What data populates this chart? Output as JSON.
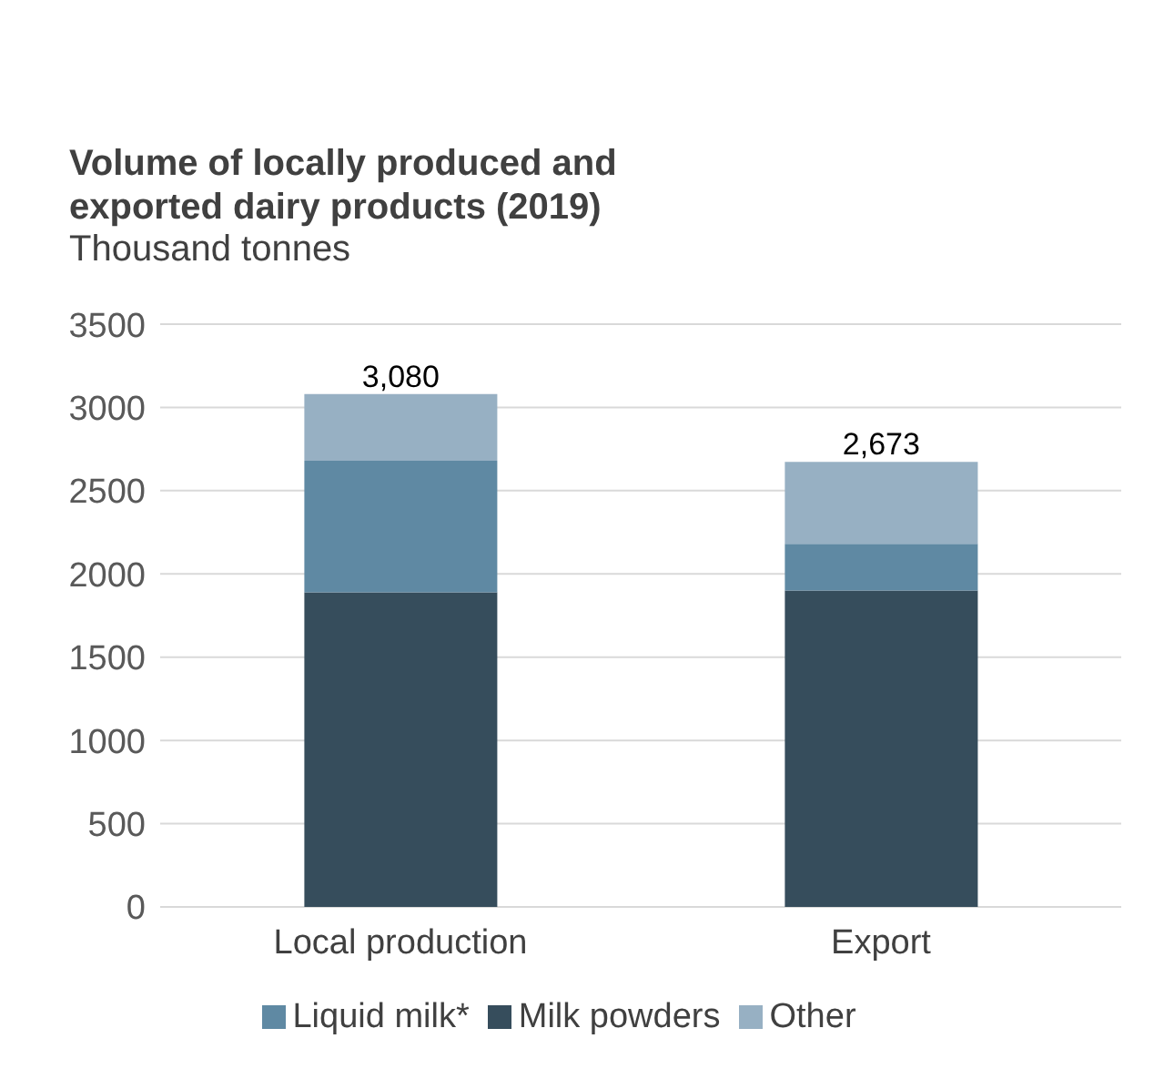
{
  "chart_data": {
    "type": "bar",
    "title": "Volume of locally produced and exported dairy products (2019)",
    "subtitle": "Thousand tonnes",
    "categories": [
      "Local production",
      "Export"
    ],
    "stacked": true,
    "series": [
      {
        "name": "Milk powders",
        "color": "#364d5c",
        "values": [
          1890,
          1900
        ]
      },
      {
        "name": "Liquid milk*",
        "color": "#5f89a3",
        "values": [
          790,
          280
        ]
      },
      {
        "name": "Other",
        "color": "#97b0c3",
        "values": [
          400,
          493
        ]
      }
    ],
    "totals": [
      "3,080",
      "2,673"
    ],
    "ylim": [
      0,
      3500
    ],
    "yticks": [
      0,
      500,
      1000,
      1500,
      2000,
      2500,
      3000,
      3500
    ],
    "grid": "y",
    "legend": "bottom"
  }
}
